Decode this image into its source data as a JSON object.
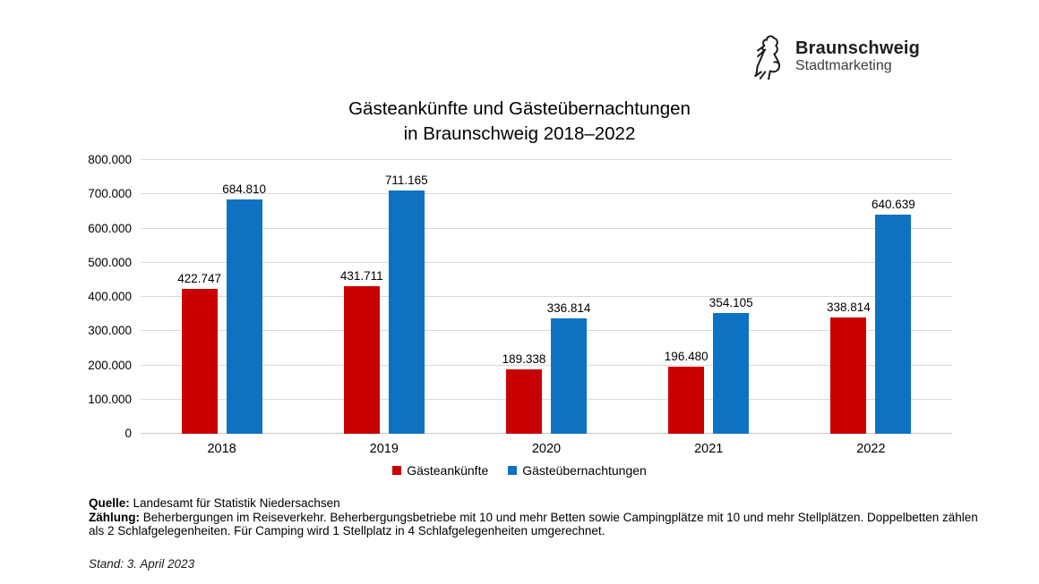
{
  "logo": {
    "brand": "Braunschweig",
    "subtitle": "Stadtmarketing"
  },
  "title": {
    "line1": "Gästeankünfte und Gästeübernachtungen",
    "line2": "in Braunschweig 2018–2022"
  },
  "chart_data": {
    "type": "bar",
    "title": "Gästeankünfte und Gästeübernachtungen in Braunschweig 2018–2022",
    "categories": [
      "2018",
      "2019",
      "2020",
      "2021",
      "2022"
    ],
    "series": [
      {
        "key": "gaesteankuenfte",
        "name": "Gästeankünfte",
        "color": "#c80000",
        "values": [
          422747,
          431711,
          189338,
          196480,
          338814
        ],
        "labels": [
          "422.747",
          "431.711",
          "189.338",
          "196.480",
          "338.814"
        ]
      },
      {
        "key": "gaesteuebernachtungen",
        "name": "Gästeübernachtungen",
        "color": "#0e72c2",
        "values": [
          684810,
          711165,
          336814,
          354105,
          640639
        ],
        "labels": [
          "684.810",
          "711.165",
          "336.814",
          "354.105",
          "640.639"
        ]
      }
    ],
    "xlabel": "",
    "ylabel": "",
    "ylim": [
      0,
      800000
    ],
    "ytick_step": 100000,
    "ytick_labels": [
      "0",
      "100.000",
      "200.000",
      "300.000",
      "400.000",
      "500.000",
      "600.000",
      "700.000",
      "800.000"
    ],
    "grid": true,
    "gridline_color": "#d9d9d9",
    "legend_position": "bottom"
  },
  "footer": {
    "source_label": "Quelle:",
    "source_text": "Landesamt für Statistik Niedersachsen",
    "census_label": "Zählung:",
    "census_text": "Beherbergungen im Reiseverkehr. Beherbergungsbetriebe mit 10 und mehr Betten sowie Campingplätze mit 10 und mehr Stellplätzen. Doppelbetten zählen als 2 Schlafgelegenheiten. Für Camping wird 1 Stellplatz in 4 Schlafgelegenheiten umgerechnet.",
    "stand": "Stand: 3. April 2023"
  }
}
